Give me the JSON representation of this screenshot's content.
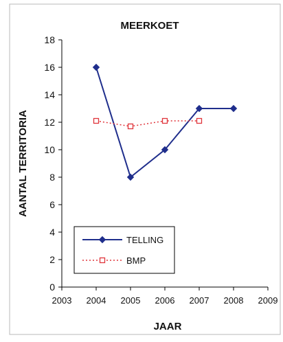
{
  "chart_data": {
    "type": "line",
    "title": "MEERKOET",
    "xlabel": "JAAR",
    "ylabel": "AANTAL TERRITORIA",
    "xlim": [
      2003,
      2009
    ],
    "ylim": [
      0,
      18
    ],
    "xticks": [
      2003,
      2004,
      2005,
      2006,
      2007,
      2008,
      2009
    ],
    "yticks": [
      0,
      2,
      4,
      6,
      8,
      10,
      12,
      14,
      16,
      18
    ],
    "grid": false,
    "legend_position": "bottom-left",
    "series": [
      {
        "name": "TELLING",
        "x": [
          2004,
          2005,
          2006,
          2007,
          2008
        ],
        "y": [
          16,
          8,
          10,
          13,
          13
        ],
        "color": "#1f2e8c",
        "line_style": "solid",
        "marker": "diamond"
      },
      {
        "name": "BMP",
        "x": [
          2004,
          2005,
          2006,
          2007
        ],
        "y": [
          12.1,
          11.7,
          12.1,
          12.1
        ],
        "color": "#e0343a",
        "line_style": "dotted",
        "marker": "open-square"
      }
    ]
  }
}
